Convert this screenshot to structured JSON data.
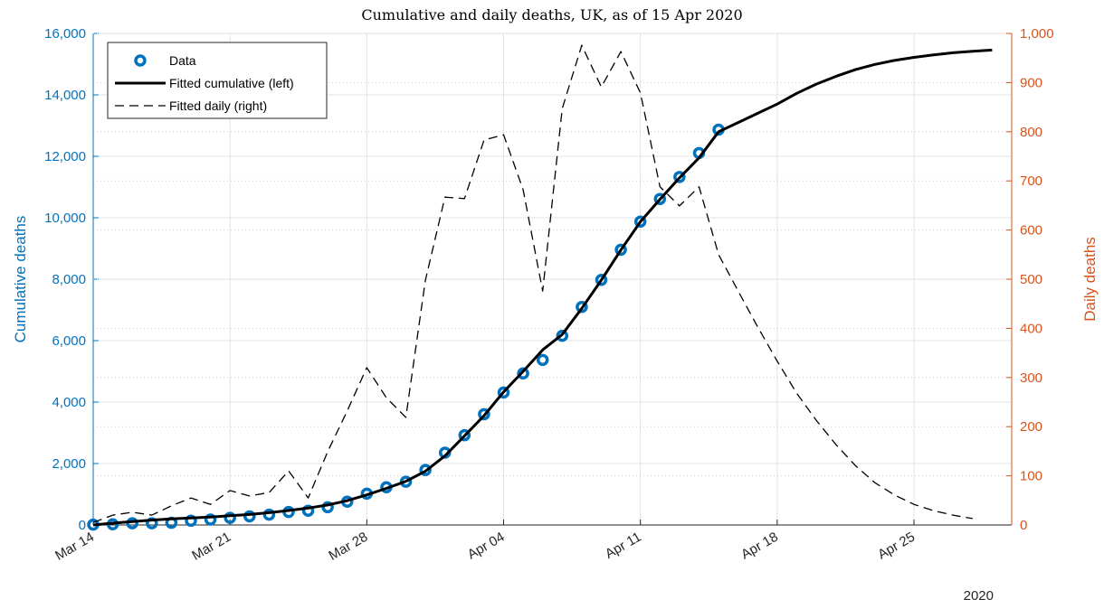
{
  "chart_data": {
    "type": "line",
    "title": "Cumulative and daily deaths, UK, as of 15 Apr 2020",
    "ylabel": "Cumulative deaths",
    "y2label": "Daily deaths",
    "xlabel_year": "2020",
    "xlim": [
      "2020-03-14",
      "2020-04-30"
    ],
    "xticks": [
      {
        "value": "2020-03-14",
        "label": "Mar 14"
      },
      {
        "value": "2020-03-21",
        "label": "Mar 21"
      },
      {
        "value": "2020-03-28",
        "label": "Mar 28"
      },
      {
        "value": "2020-04-04",
        "label": "Apr 04"
      },
      {
        "value": "2020-04-11",
        "label": "Apr 11"
      },
      {
        "value": "2020-04-18",
        "label": "Apr 18"
      },
      {
        "value": "2020-04-25",
        "label": "Apr 25"
      }
    ],
    "ylim": [
      0,
      16000
    ],
    "yticks": [
      0,
      {
        "value": 2000,
        "label": "2,000"
      },
      {
        "value": 4000,
        "label": "4,000"
      },
      {
        "value": 6000,
        "label": "6,000"
      },
      {
        "value": 8000,
        "label": "8,000"
      },
      {
        "value": 10000,
        "label": "10,000"
      },
      {
        "value": 12000,
        "label": "12,000"
      },
      {
        "value": 14000,
        "label": "14,000"
      },
      {
        "value": 16000,
        "label": "16,000"
      }
    ],
    "y2lim": [
      0,
      1000
    ],
    "y2ticks": [
      0,
      100,
      200,
      300,
      400,
      500,
      600,
      700,
      800,
      900,
      {
        "value": 1000,
        "label": "1,000"
      }
    ],
    "ycolor": "#0072bd",
    "y2color": "#d95319",
    "grid": true,
    "legend": "upper left",
    "x": [
      "2020-03-14",
      "2020-03-15",
      "2020-03-16",
      "2020-03-17",
      "2020-03-18",
      "2020-03-19",
      "2020-03-20",
      "2020-03-21",
      "2020-03-22",
      "2020-03-23",
      "2020-03-24",
      "2020-03-25",
      "2020-03-26",
      "2020-03-27",
      "2020-03-28",
      "2020-03-29",
      "2020-03-30",
      "2020-03-31",
      "2020-04-01",
      "2020-04-02",
      "2020-04-03",
      "2020-04-04",
      "2020-04-05",
      "2020-04-06",
      "2020-04-07",
      "2020-04-08",
      "2020-04-09",
      "2020-04-10",
      "2020-04-11",
      "2020-04-12",
      "2020-04-13",
      "2020-04-14",
      "2020-04-15",
      "2020-04-16",
      "2020-04-17",
      "2020-04-18",
      "2020-04-19",
      "2020-04-20",
      "2020-04-21",
      "2020-04-22",
      "2020-04-23",
      "2020-04-24",
      "2020-04-25",
      "2020-04-26",
      "2020-04-27",
      "2020-04-28",
      "2020-04-29"
    ],
    "series": [
      {
        "name": "Data",
        "color": "#0072bd",
        "style": "markers",
        "values": [
          10,
          21,
          56,
          56,
          72,
          138,
          178,
          233,
          281,
          335,
          422,
          465,
          578,
          759,
          1019,
          1228,
          1408,
          1789,
          2352,
          2921,
          3605,
          4313,
          4934,
          5373,
          6159,
          7097,
          7978,
          8958,
          9875,
          10612,
          11329,
          12107,
          12868,
          null,
          null,
          null,
          null,
          null,
          null,
          null,
          null,
          null,
          null,
          null,
          null,
          null,
          null
        ]
      },
      {
        "name": "Fitted cumulative (left)",
        "color": "#000000",
        "style": "solid",
        "values": [
          0,
          60,
          110,
          160,
          200,
          230,
          260,
          300,
          340,
          400,
          470,
          550,
          650,
          790,
          980,
          1190,
          1420,
          1750,
          2250,
          2900,
          3560,
          4330,
          5000,
          5700,
          6200,
          7050,
          7970,
          8950,
          9870,
          10600,
          11300,
          11950,
          12800,
          13100,
          13400,
          13700,
          14050,
          14350,
          14600,
          14820,
          14990,
          15120,
          15220,
          15300,
          15370,
          15420,
          15460
        ]
      },
      {
        "name": "Fitted daily (right)",
        "color": "#000000",
        "style": "dashed",
        "axis": "y2",
        "values": [
          5,
          20,
          26,
          20,
          39,
          55,
          42,
          70,
          59,
          66,
          110,
          55,
          149,
          232,
          320,
          259,
          219,
          498,
          667,
          664,
          783,
          794,
          682,
          476,
          847,
          976,
          891,
          963,
          879,
          688,
          649,
          688,
          550,
          476,
          403,
          333,
          268,
          213,
          164,
          121,
          86,
          61,
          42,
          29,
          20,
          13,
          null
        ]
      }
    ]
  }
}
